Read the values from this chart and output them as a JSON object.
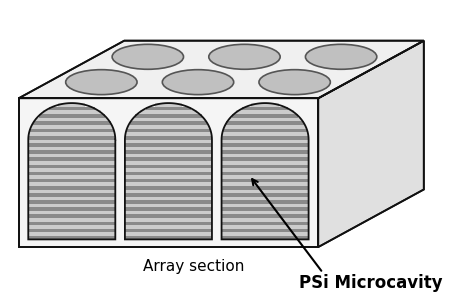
{
  "fig_width": 4.74,
  "fig_height": 3.06,
  "dpi": 100,
  "bg_color": "#ffffff",
  "box_color": "#111111",
  "front_face_color": "#f5f5f5",
  "top_face_color": "#f0f0f0",
  "right_face_color": "#e0e0e0",
  "ellipse_fill": "#c0c0c0",
  "ellipse_edge": "#555555",
  "stripe_colors": [
    "#999999",
    "#c8c8c8",
    "#888888",
    "#bfbfbf",
    "#7a7a7a",
    "#b5b5b5",
    "#888888",
    "#c0c0c0",
    "#999999",
    "#d0d0d0",
    "#878787",
    "#c4c4c4",
    "#7e7e7e",
    "#bababa",
    "#909090",
    "#cecece",
    "#848484",
    "#c0c0c0",
    "#8a8a8a",
    "#cac aca",
    "#808080",
    "#c8c8c8",
    "#858585",
    "#d0d0d0",
    "#7c7c7c",
    "#c0c0c0",
    "#868686",
    "#cccccc",
    "#828282",
    "#c6c6c6"
  ],
  "n_stripes": 28,
  "label_array": "Array section",
  "label_psi": "PSi Microcavity",
  "label_array_fontsize": 11,
  "label_psi_fontsize": 12
}
